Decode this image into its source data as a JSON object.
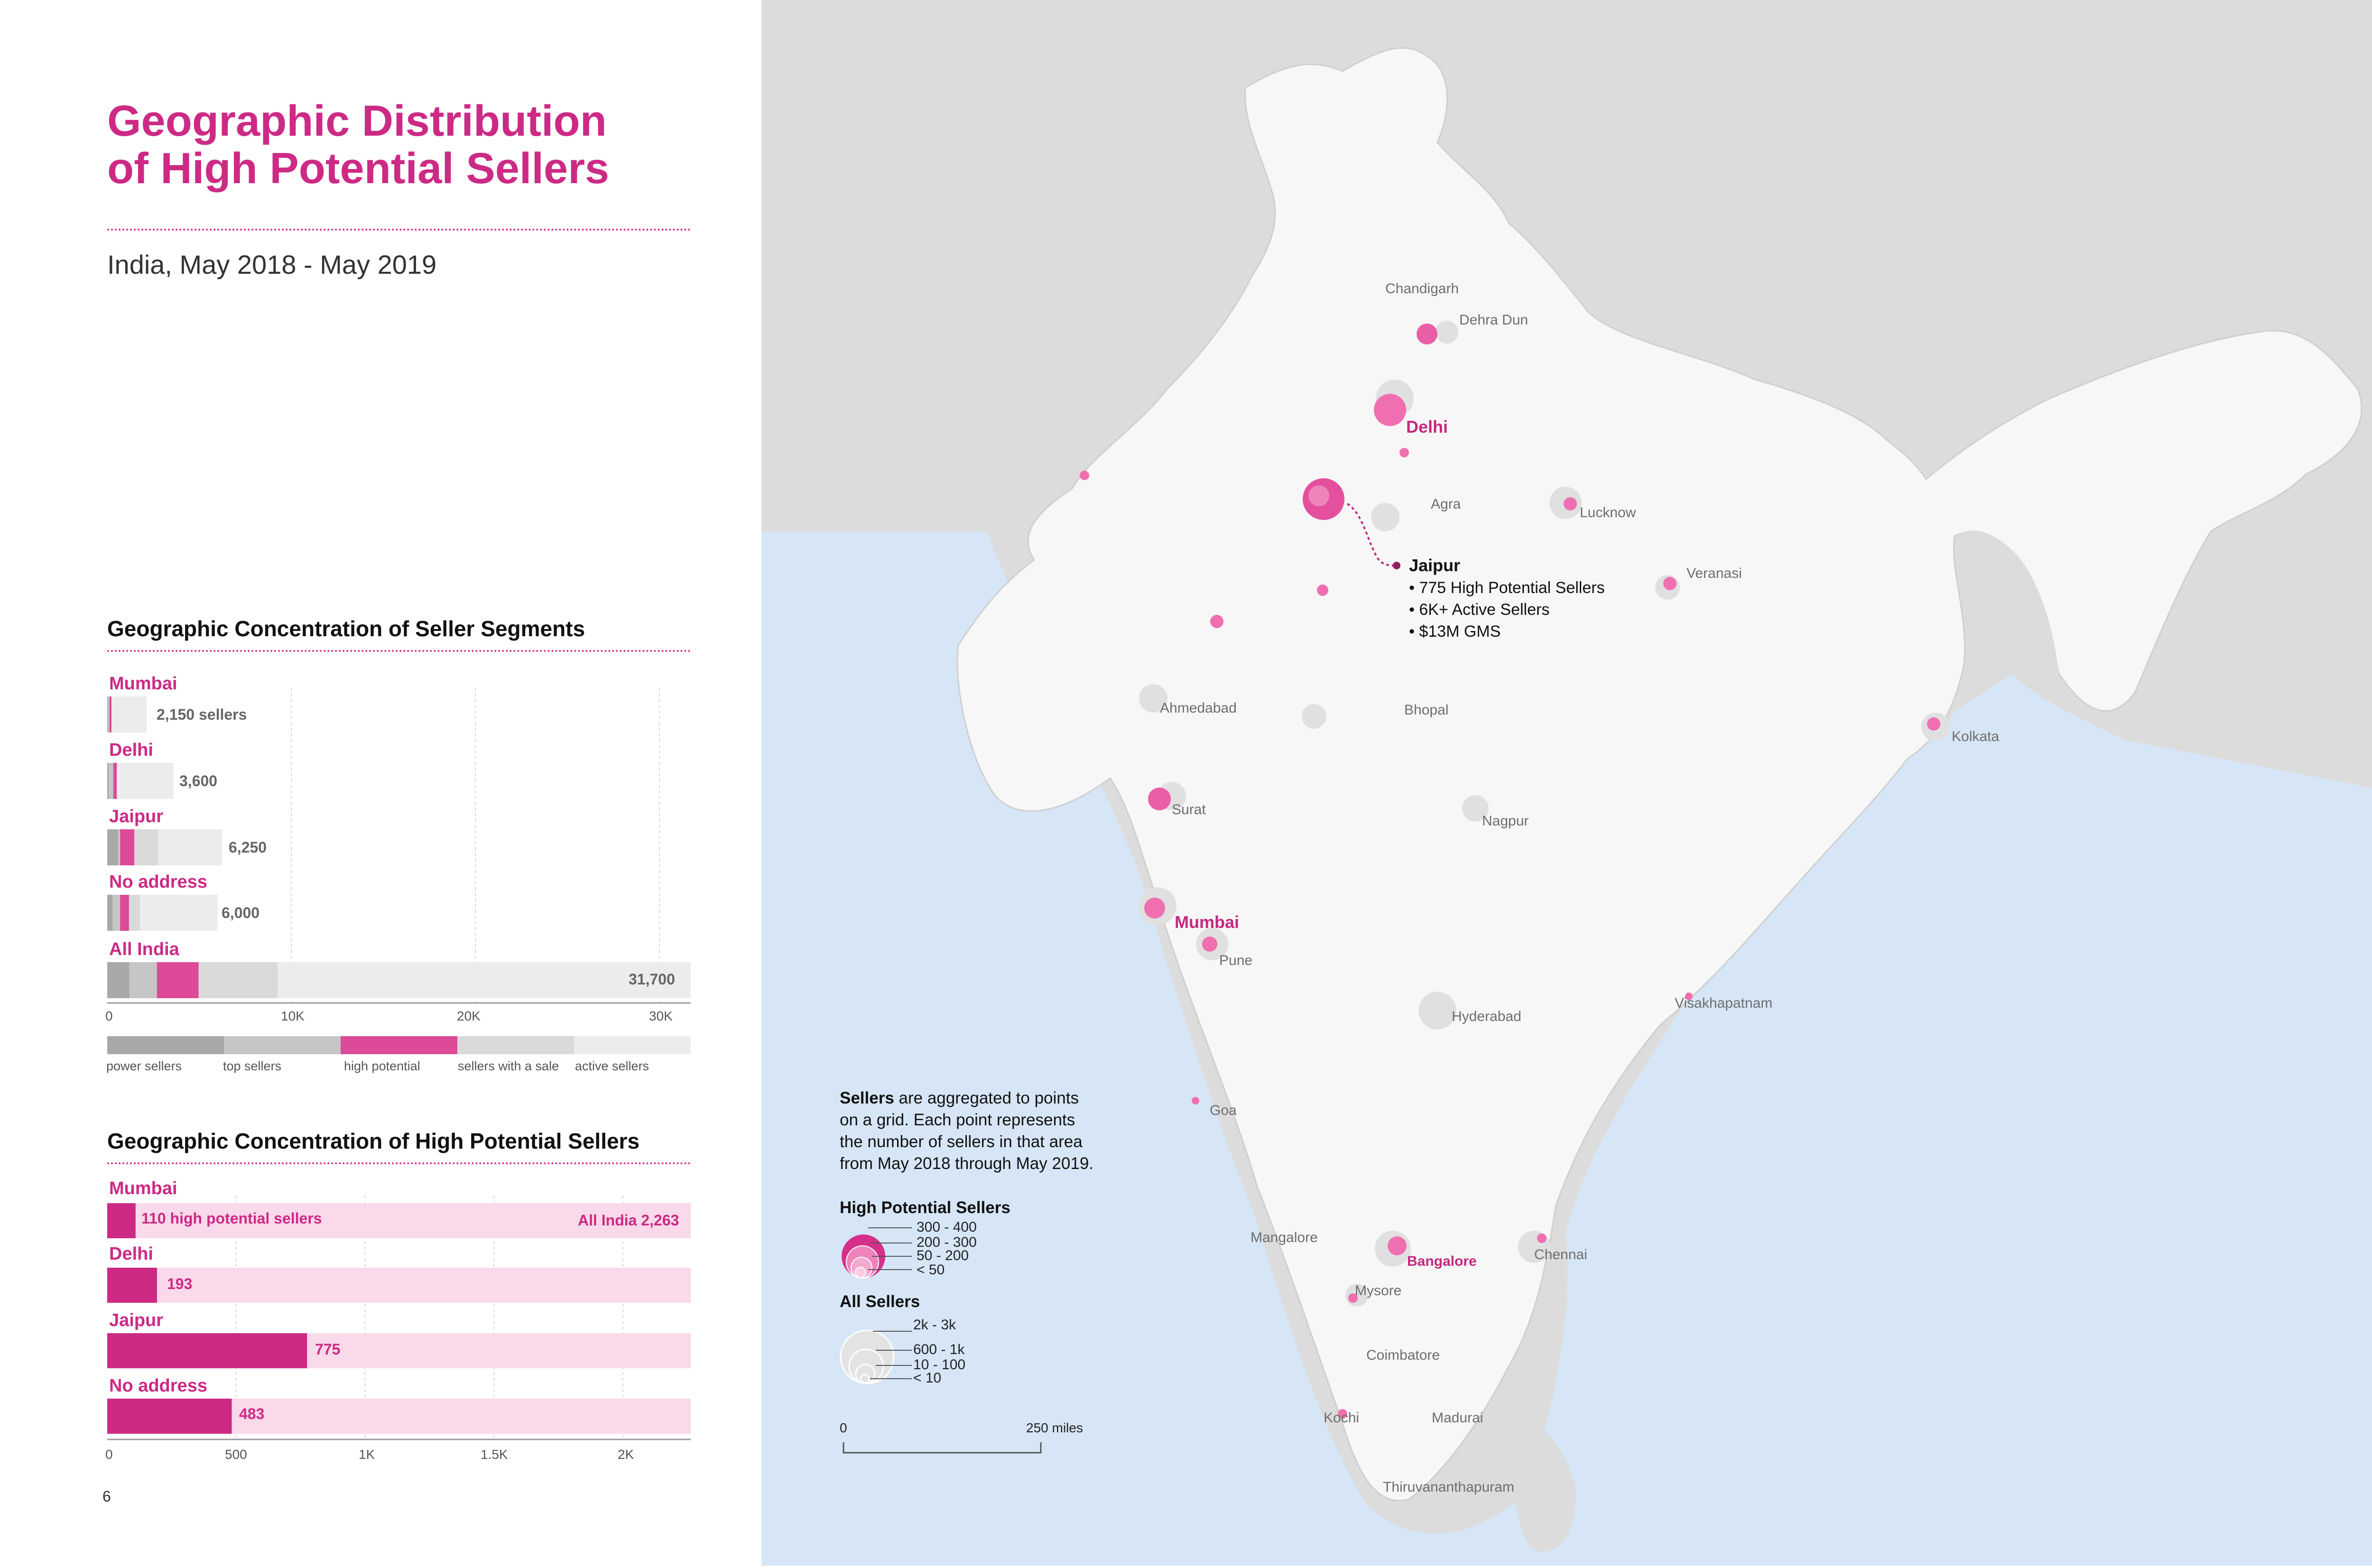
{
  "title_line1": "Geographic Distribution",
  "title_line2": "of High Potential Sellers",
  "subtitle": "India, May 2018 - May 2019",
  "page_number": "6",
  "colors": {
    "accent": "#cc2a85",
    "power": "#a8a8a8",
    "top": "#c6c6c6",
    "high_potential": "#dc4a98",
    "sale": "#d9d9d9",
    "active": "#ececec",
    "hp_bar": "#cc2a85",
    "hp_track": "#f9d9ea",
    "ocean": "#d6e6f7",
    "land": "#f7f7f7",
    "neighbor": "#dcdcdc"
  },
  "chart_data": [
    {
      "type": "bar",
      "title": "Geographic Concentration of Seller Segments",
      "categories": [
        "Mumbai",
        "Delhi",
        "Jaipur",
        "No address",
        "All India"
      ],
      "value_labels": [
        "2,150 sellers",
        "3,600",
        "6,250",
        "6,000",
        "31,700"
      ],
      "totals": [
        2150,
        3600,
        6250,
        6000,
        31700
      ],
      "series": [
        {
          "name": "power sellers",
          "values": [
            40,
            80,
            600,
            300,
            1200
          ]
        },
        {
          "name": "top sellers",
          "values": [
            80,
            250,
            100,
            400,
            1500
          ]
        },
        {
          "name": "high potential",
          "values": [
            110,
            193,
            775,
            483,
            2263
          ]
        },
        {
          "name": "sellers with a sale",
          "values": [
            0,
            0,
            1300,
            600,
            4300
          ]
        },
        {
          "name": "active sellers",
          "values": [
            1920,
            3077,
            3475,
            4217,
            22437
          ]
        }
      ],
      "x_ticks": [
        "0",
        "10K",
        "20K",
        "30K"
      ],
      "xlim": [
        0,
        31700
      ]
    },
    {
      "type": "bar",
      "title": "Geographic Concentration of High Potential Sellers",
      "categories": [
        "Mumbai",
        "Delhi",
        "Jaipur",
        "No address"
      ],
      "values": [
        110,
        193,
        775,
        483
      ],
      "value_labels": [
        "110 high potential sellers",
        "193",
        "775",
        "483"
      ],
      "total_label": "All India 2,263",
      "total": 2263,
      "x_ticks": [
        "0",
        "500",
        "1K",
        "1.5K",
        "2K"
      ],
      "xlim": [
        0,
        2263
      ]
    }
  ],
  "map": {
    "cities": [
      {
        "name": "Chandigarh",
        "hp": false
      },
      {
        "name": "Dehra Dun",
        "hp": false
      },
      {
        "name": "Delhi",
        "hp": true
      },
      {
        "name": "Agra",
        "hp": false
      },
      {
        "name": "Lucknow",
        "hp": false
      },
      {
        "name": "Veranasi",
        "hp": false
      },
      {
        "name": "Ahmedabad",
        "hp": false
      },
      {
        "name": "Bhopal",
        "hp": false
      },
      {
        "name": "Kolkata",
        "hp": false
      },
      {
        "name": "Surat",
        "hp": false
      },
      {
        "name": "Nagpur",
        "hp": false
      },
      {
        "name": "Mumbai",
        "hp": true
      },
      {
        "name": "Pune",
        "hp": false
      },
      {
        "name": "Hyderabad",
        "hp": false
      },
      {
        "name": "Visakhapatnam",
        "hp": false
      },
      {
        "name": "Goa",
        "hp": false
      },
      {
        "name": "Mangalore",
        "hp": false
      },
      {
        "name": "Bangalore",
        "hp": true
      },
      {
        "name": "Chennai",
        "hp": false
      },
      {
        "name": "Mysore",
        "hp": false
      },
      {
        "name": "Coimbatore",
        "hp": false
      },
      {
        "name": "Kochi",
        "hp": false
      },
      {
        "name": "Madurai",
        "hp": false
      },
      {
        "name": "Thiruvananthapuram",
        "hp": false
      }
    ],
    "callout": {
      "city": "Jaipur",
      "bullets": [
        "• 775 High Potential Sellers",
        "• 6K+ Active Sellers",
        "• $13M GMS"
      ]
    },
    "note": {
      "bold": "Sellers",
      "text_line1": " are aggregated to points",
      "text_line2": "on a grid. Each point represents",
      "text_line3": "the number of sellers in that area",
      "text_line4": "from May 2018 through May 2019."
    },
    "legend_hp": {
      "title": "High Potential Sellers",
      "items": [
        "300 - 400",
        "200 - 300",
        "50 - 200",
        "< 50"
      ]
    },
    "legend_all": {
      "title": "All Sellers",
      "items": [
        "2k - 3k",
        "600 - 1k",
        "10 - 100",
        "< 10"
      ]
    },
    "scale": {
      "start": "0",
      "end": "250 miles"
    }
  }
}
